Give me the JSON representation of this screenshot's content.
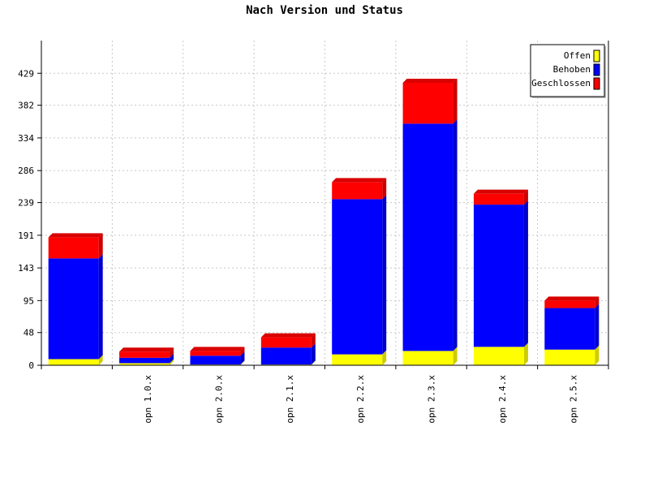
{
  "chart_data": {
    "type": "bar",
    "stacked": true,
    "title": "Nach Version und Status",
    "xlabel": "",
    "ylabel": "",
    "categories": [
      "",
      "opn 1.0.x",
      "opn 2.0.x",
      "opn 2.1.x",
      "opn 2.2.x",
      "opn 2.3.x",
      "opn 2.4.x",
      "opn 2.5.x"
    ],
    "series": [
      {
        "name": "Offen",
        "color": "#ffff00",
        "values": [
          9,
          3,
          1,
          1,
          16,
          21,
          27,
          23
        ]
      },
      {
        "name": "Behoben",
        "color": "#0000ff",
        "values": [
          148,
          8,
          13,
          25,
          228,
          334,
          209,
          61
        ]
      },
      {
        "name": "Geschlossen",
        "color": "#ff0000",
        "values": [
          31,
          9,
          7,
          15,
          25,
          60,
          16,
          11
        ]
      }
    ],
    "y_ticks": [
      "0",
      "48",
      "95",
      "143",
      "191",
      "239",
      "286",
      "334",
      "382",
      "429"
    ],
    "ylim": [
      0,
      477
    ],
    "grid": true,
    "legend_position": "top-right"
  }
}
